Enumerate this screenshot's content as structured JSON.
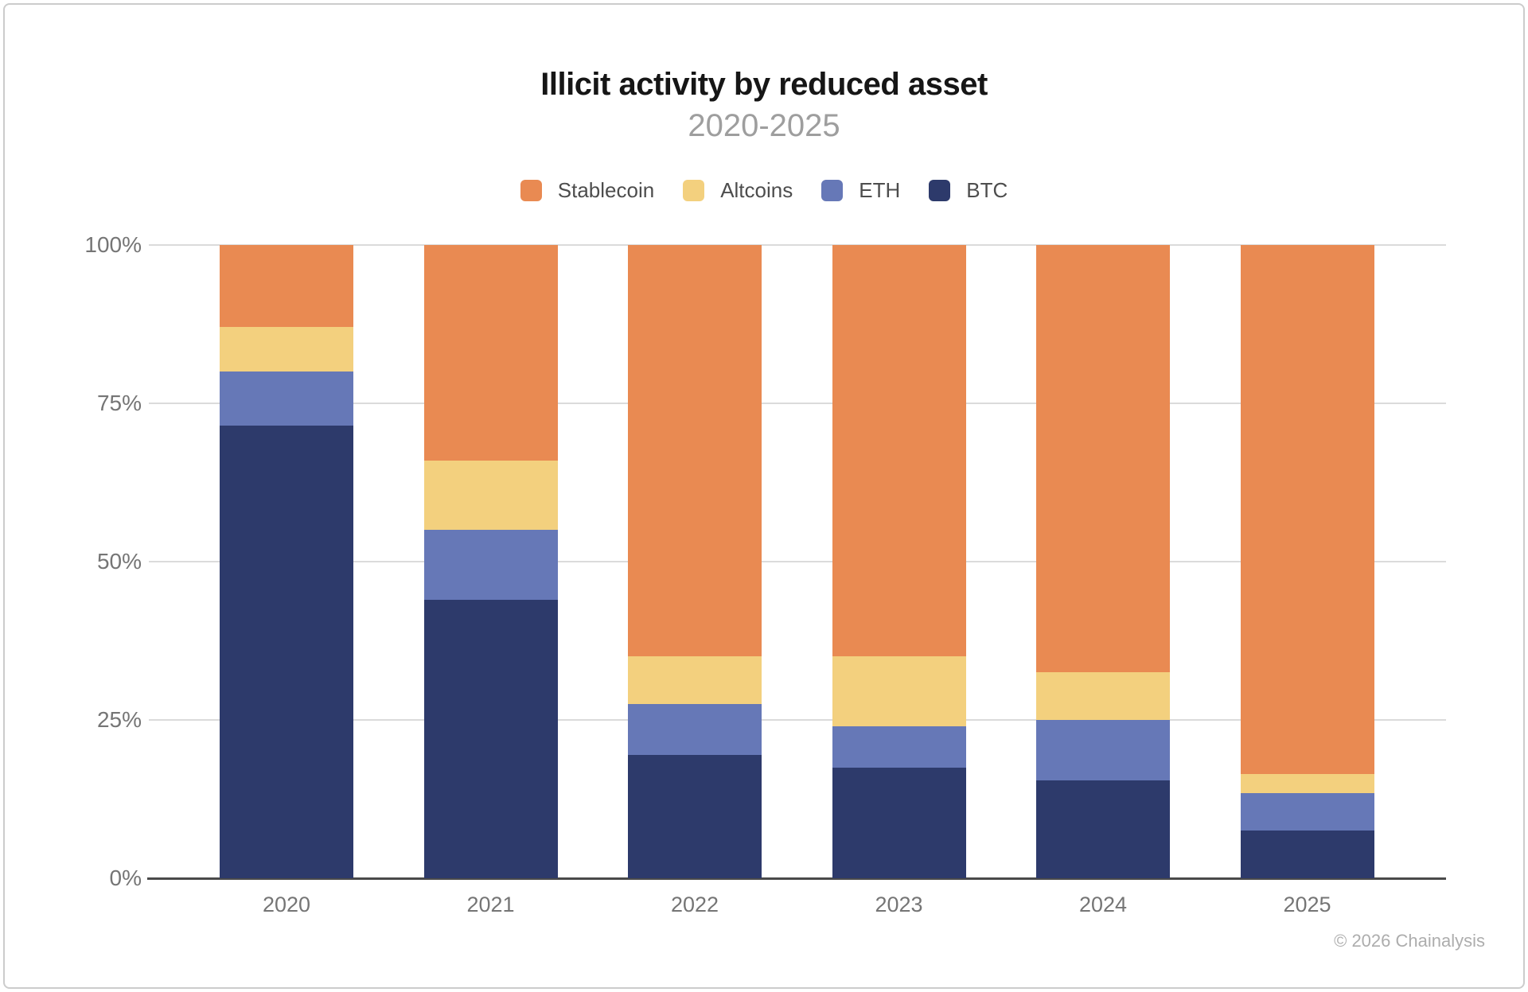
{
  "header": {
    "title": "Illicit activity by reduced asset",
    "subtitle": "2020-2025"
  },
  "chart_data": {
    "type": "bar",
    "stacked": true,
    "percent": true,
    "title": "Illicit activity by reduced asset",
    "subtitle": "2020-2025",
    "categories": [
      "2020",
      "2021",
      "2022",
      "2023",
      "2024",
      "2025"
    ],
    "series": [
      {
        "name": "Stablecoin",
        "color": "#E98A52",
        "values": [
          13,
          34,
          65,
          65,
          67.5,
          83.5
        ]
      },
      {
        "name": "Altcoins",
        "color": "#F3D07E",
        "values": [
          7,
          11,
          7.5,
          11,
          7.5,
          3
        ]
      },
      {
        "name": "ETH",
        "color": "#6678B7",
        "values": [
          8.5,
          11,
          8,
          6.5,
          9.5,
          6
        ]
      },
      {
        "name": "BTC",
        "color": "#2D3A6B",
        "values": [
          71.5,
          44,
          19.5,
          17.5,
          15.5,
          7.5
        ]
      }
    ],
    "stack_order_top_to_bottom": [
      "Stablecoin",
      "Altcoins",
      "ETH",
      "BTC"
    ],
    "ylabel": "",
    "xlabel": "",
    "ylim": [
      0,
      100
    ],
    "yticks": [
      {
        "value": 100,
        "label": "100%"
      },
      {
        "value": 75,
        "label": "75%"
      },
      {
        "value": 50,
        "label": "50%"
      },
      {
        "value": 25,
        "label": "25%"
      },
      {
        "value": 0,
        "label": "0%"
      }
    ],
    "grid": true,
    "legend_position": "top"
  },
  "footer": {
    "attribution": "© 2026 Chainalysis"
  },
  "colors": {
    "grid": "#DBDBDB",
    "axis": "#4A4A4A",
    "title": "#161616",
    "subtitle": "#9E9E9E",
    "tick_label": "#757575",
    "legend_label": "#4D4D4D",
    "attribution": "#ADADAD",
    "card_border": "#CCCCCC",
    "background": "#FFFFFF"
  }
}
